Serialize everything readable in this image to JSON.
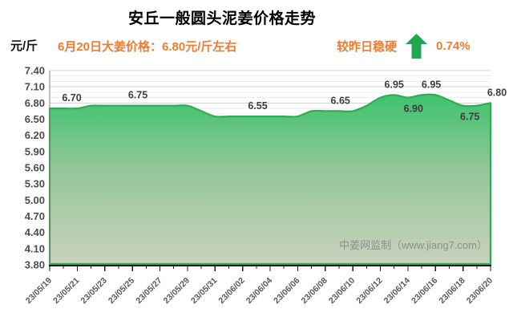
{
  "header": {
    "title": "安丘一般圆头泥姜价格走势",
    "unit_label": "元/斤",
    "price_note": "6月20日大姜价格：6.80元/斤左右",
    "trend_label": "较昨日稳硬",
    "trend_value": "0.74%",
    "accent_color": "#ed7d31",
    "arrow_color": "#1ea84d"
  },
  "watermark": "中姜网监制（www.jiang7.com）",
  "chart_data": {
    "type": "area",
    "title": "安丘一般圆头泥姜价格走势",
    "ylabel": "元/斤",
    "grid": true,
    "legend_position": "none",
    "y_axis": {
      "min": 3.8,
      "max": 7.4,
      "step": 0.3,
      "minor_step": 0.1,
      "tick_labels": [
        "7.40",
        "7.10",
        "6.80",
        "6.50",
        "6.20",
        "5.90",
        "5.60",
        "5.30",
        "5.00",
        "4.70",
        "4.40",
        "4.10",
        "3.80"
      ]
    },
    "x_tick_labels": [
      "23/05/19",
      "23/05/21",
      "23/05/23",
      "23/05/25",
      "23/05/27",
      "23/05/29",
      "23/05/31",
      "23/06/02",
      "23/06/04",
      "23/06/06",
      "23/06/08",
      "23/06/10",
      "23/06/12",
      "23/06/14",
      "23/06/16",
      "23/06/18",
      "23/06/20"
    ],
    "x_days_span": 32,
    "series": [
      {
        "name": "安丘一般圆头泥姜价格 (元/斤)",
        "start_date": "23/05/19",
        "end_date": "23/06/20",
        "values": [
          6.7,
          6.7,
          6.7,
          6.75,
          6.75,
          6.75,
          6.75,
          6.75,
          6.75,
          6.75,
          6.75,
          6.65,
          6.55,
          6.55,
          6.55,
          6.55,
          6.55,
          6.55,
          6.55,
          6.65,
          6.65,
          6.65,
          6.65,
          6.75,
          6.9,
          6.95,
          6.9,
          6.95,
          6.95,
          6.85,
          6.75,
          6.75,
          6.8
        ]
      }
    ],
    "point_labels": [
      {
        "day": 1.6,
        "text": "6.70",
        "value": 6.7,
        "placement": "above",
        "dx": 0
      },
      {
        "day": 6.4,
        "text": "6.75",
        "value": 6.75,
        "placement": "above",
        "dx": 0
      },
      {
        "day": 15.1,
        "text": "6.55",
        "value": 6.55,
        "placement": "above",
        "dx": 0
      },
      {
        "day": 21.1,
        "text": "6.65",
        "value": 6.65,
        "placement": "above",
        "dx": 0
      },
      {
        "day": 25.0,
        "text": "6.95",
        "value": 6.95,
        "placement": "above",
        "dx": 0
      },
      {
        "day": 26.4,
        "text": "6.90",
        "value": 6.9,
        "placement": "below",
        "dx": 0
      },
      {
        "day": 27.7,
        "text": "6.95",
        "value": 6.95,
        "placement": "above",
        "dx": 0
      },
      {
        "day": 30.5,
        "text": "6.75",
        "value": 6.75,
        "placement": "below",
        "dx": 0
      },
      {
        "day": 32.0,
        "text": "6.80",
        "value": 6.8,
        "placement": "above",
        "dx": 8
      }
    ],
    "colors": {
      "line": "#2fab55",
      "fill_top": "#33c065",
      "fill_mid": "#8fc494",
      "fill_bottom": "#c7cfba",
      "grid_major": "#d6d6d6",
      "grid_minor": "#ececec",
      "axis_x": "#1a1a1a",
      "axis_y": "#808080",
      "tick_text": "#595959",
      "value_text": "#3c3c3c"
    }
  }
}
